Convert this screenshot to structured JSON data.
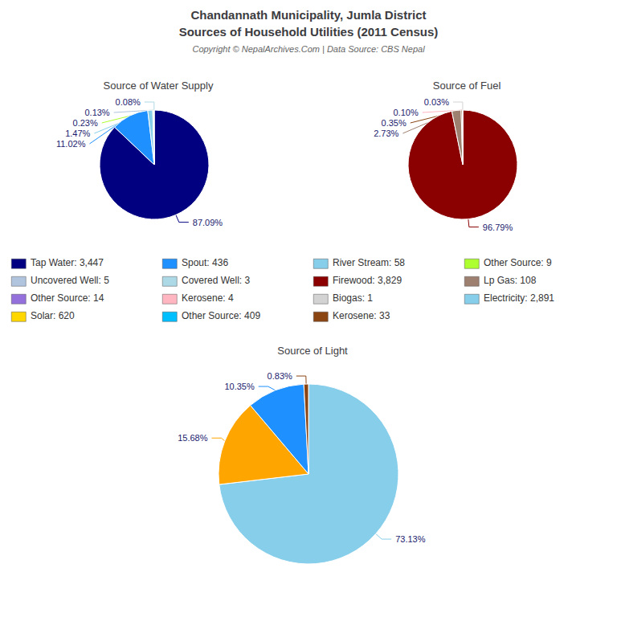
{
  "title": "Chandannath Municipality, Jumla District",
  "subtitle": "Sources of Household Utilities (2011 Census)",
  "annotations": [
    "Copyright © NepalArchives.Com | Data Source: CBS Nepal"
  ],
  "legend_entries": [
    {
      "label": "Tap Water: 3,447",
      "color": "#000080"
    },
    {
      "label": "Spout: 436",
      "color": "#1e90ff"
    },
    {
      "label": "River Stream: 58",
      "color": "#87ceeb"
    },
    {
      "label": "Other Source: 9",
      "color": "#adff2f"
    },
    {
      "label": "Uncovered Well: 5",
      "color": "#b0c4de"
    },
    {
      "label": "Covered Well: 3",
      "color": "#add8e6"
    },
    {
      "label": "Firewood: 3,829",
      "color": "#8b0000"
    },
    {
      "label": "Lp Gas: 108",
      "color": "#9e8070"
    },
    {
      "label": "Other Source: 14",
      "color": "#9370db"
    },
    {
      "label": "Kerosene: 4",
      "color": "#ffb6c1"
    },
    {
      "label": "Biogas: 1",
      "color": "#d3d3d3"
    },
    {
      "label": "Electricity: 2,891",
      "color": "#87ceeb"
    },
    {
      "label": "Solar: 620",
      "color": "#ffd700"
    },
    {
      "label": "Other Source: 409",
      "color": "#00bfff"
    },
    {
      "label": "Kerosene: 33",
      "color": "#8b4513"
    }
  ],
  "chart_data": [
    {
      "type": "pie",
      "title": "Source of Water Supply",
      "values": [
        87.09,
        11.02,
        1.47,
        0.23,
        0.13,
        0.08
      ],
      "value_labels": [
        "87.09%",
        "11.02%",
        "1.47%",
        "0.23%",
        "0.13%",
        "0.08%"
      ],
      "colors": [
        "#000080",
        "#1e90ff",
        "#87ceeb",
        "#adff2f",
        "#b0c4de",
        "#add8e6"
      ],
      "data_labels": true
    },
    {
      "type": "pie",
      "title": "Source of Fuel",
      "values": [
        96.79,
        2.73,
        0.35,
        0.1,
        0.03
      ],
      "value_labels": [
        "96.79%",
        "2.73%",
        "0.35%",
        "0.10%",
        "0.03%"
      ],
      "colors": [
        "#8b0000",
        "#9e8070",
        "#8b4513",
        "#ffb6c1",
        "#d3d3d3"
      ],
      "data_labels": true
    },
    {
      "type": "pie",
      "title": "Source of Light",
      "values": [
        73.13,
        15.68,
        10.35,
        0.83
      ],
      "value_labels": [
        "73.13%",
        "15.68%",
        "10.35%",
        "0.83%"
      ],
      "colors": [
        "#87ceeb",
        "#ffa500",
        "#1e90ff",
        "#8b4513"
      ],
      "data_labels": true
    }
  ]
}
